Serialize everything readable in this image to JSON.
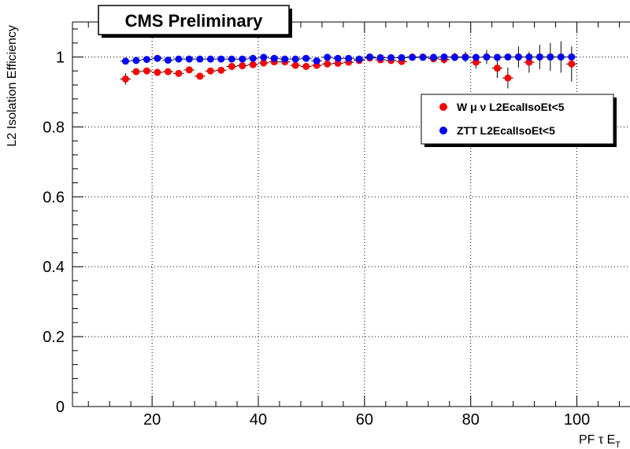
{
  "chart_data": {
    "type": "scatter",
    "title": "CMS Preliminary",
    "xlabel": "PF τ E",
    "xlabel_sub": "T",
    "ylabel": "L2 Isolation Efficiency",
    "xlim": [
      5,
      110
    ],
    "ylim": [
      0,
      1.1
    ],
    "x_ticks": [
      20,
      40,
      60,
      80,
      100
    ],
    "x_tick_labels": [
      "20",
      "40",
      "60",
      "80",
      "100"
    ],
    "y_ticks": [
      0,
      0.2,
      0.4,
      0.6,
      0.8,
      1
    ],
    "y_tick_labels": [
      "0",
      "0.2",
      "0.4",
      "0.6",
      "0.8",
      "1"
    ],
    "grid": true,
    "legend_position": "top-right",
    "series": [
      {
        "name": "W μ ν L2EcalIsoEt<5",
        "color": "#ff0000",
        "x": [
          15,
          17,
          19,
          21,
          23,
          25,
          27,
          29,
          31,
          33,
          35,
          37,
          39,
          41,
          43,
          45,
          47,
          49,
          51,
          53,
          55,
          57,
          59,
          61,
          63,
          65,
          67,
          69,
          71,
          73,
          75,
          77,
          79,
          81,
          83,
          85,
          87,
          89,
          91,
          93,
          95,
          97,
          99
        ],
        "y": [
          0.937,
          0.958,
          0.96,
          0.956,
          0.958,
          0.953,
          0.963,
          0.945,
          0.96,
          0.962,
          0.973,
          0.975,
          0.978,
          0.983,
          0.986,
          0.986,
          0.976,
          0.973,
          0.976,
          0.98,
          0.982,
          0.985,
          0.99,
          0.997,
          0.992,
          0.99,
          0.987,
          1.0,
          1.0,
          0.995,
          0.993,
          1.0,
          1.0,
          0.985,
          1.0,
          0.968,
          0.94,
          1.0,
          0.985,
          1.0,
          1.0,
          1.0,
          0.98
        ],
        "err": [
          0.016,
          0.01,
          0.01,
          0.009,
          0.009,
          0.009,
          0.008,
          0.009,
          0.008,
          0.008,
          0.007,
          0.007,
          0.007,
          0.007,
          0.006,
          0.006,
          0.007,
          0.007,
          0.007,
          0.007,
          0.007,
          0.007,
          0.007,
          0.005,
          0.006,
          0.007,
          0.008,
          0.006,
          0.008,
          0.01,
          0.012,
          0.012,
          0.015,
          0.018,
          0.02,
          0.028,
          0.03,
          0.03,
          0.03,
          0.035,
          0.04,
          0.045,
          0.05
        ]
      },
      {
        "name": "ZTT L2EcalIsoEt<5",
        "color": "#0000ff",
        "x": [
          15,
          17,
          19,
          21,
          23,
          25,
          27,
          29,
          31,
          33,
          35,
          37,
          39,
          41,
          43,
          45,
          47,
          49,
          51,
          53,
          55,
          57,
          59,
          61,
          63,
          65,
          67,
          69,
          71,
          73,
          75,
          77,
          79,
          81,
          83,
          85,
          87,
          89,
          91,
          93,
          95,
          97,
          99
        ],
        "y": [
          0.988,
          0.99,
          0.993,
          0.996,
          0.991,
          0.994,
          0.994,
          0.994,
          0.994,
          0.994,
          0.994,
          0.994,
          0.996,
          0.999,
          0.996,
          0.994,
          0.994,
          0.996,
          0.989,
          0.999,
          0.996,
          0.996,
          0.994,
          1.0,
          0.998,
          0.998,
          0.998,
          0.999,
          0.999,
          0.999,
          1.0,
          0.999,
          0.999,
          0.999,
          1.0,
          0.999,
          1.0,
          1.0,
          1.0,
          1.0,
          1.0,
          1.0,
          1.0
        ],
        "err": [
          0.004,
          0.003,
          0.003,
          0.003,
          0.003,
          0.003,
          0.003,
          0.003,
          0.003,
          0.003,
          0.003,
          0.003,
          0.003,
          0.002,
          0.003,
          0.003,
          0.003,
          0.003,
          0.004,
          0.002,
          0.003,
          0.003,
          0.003,
          0.002,
          0.002,
          0.002,
          0.002,
          0.002,
          0.002,
          0.002,
          0.002,
          0.002,
          0.002,
          0.002,
          0.002,
          0.002,
          0.002,
          0.002,
          0.002,
          0.002,
          0.002,
          0.002,
          0.002
        ]
      }
    ]
  }
}
